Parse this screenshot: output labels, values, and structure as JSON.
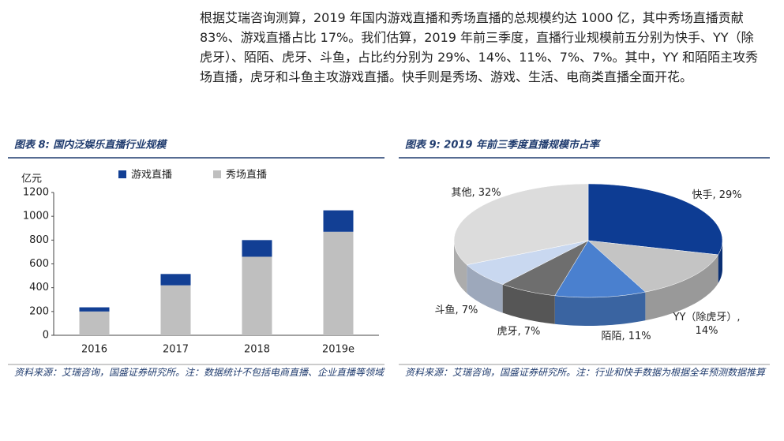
{
  "paragraph": "根据艾瑞咨询测算，2019 年国内游戏直播和秀场直播的总规模约达 1000 亿，其中秀场直播贡献 83%、游戏直播占比 17%。我们估算，2019 年前三季度，直播行业规模前五分别为快手、YY（除虎牙）、陌陌、虎牙、斗鱼，占比约分别为 29%、14%、11%、7%、7%。其中，YY 和陌陌主攻秀场直播，虎牙和斗鱼主攻游戏直播。快手则是秀场、游戏、生活、电商类直播全面开花。",
  "chart_data": [
    {
      "type": "stacked-bar",
      "title": "图表 8:  国内泛娱乐直播行业规模",
      "y_label": "亿元",
      "categories": [
        "2016",
        "2017",
        "2018",
        "2019e"
      ],
      "series": [
        {
          "name": "游戏直播",
          "color": "#123f94",
          "values": [
            35,
            95,
            140,
            180
          ]
        },
        {
          "name": "秀场直播",
          "color": "#bfbfbf",
          "values": [
            200,
            420,
            660,
            870
          ]
        }
      ],
      "ylim": [
        0,
        1200
      ],
      "yticks": [
        0,
        200,
        400,
        600,
        800,
        1000,
        1200
      ],
      "source": "资料来源：艾瑞咨询，国盛证券研究所。注：数据统计不包括电商直播、企业直播等领域"
    },
    {
      "type": "pie",
      "title": "图表 9:  2019 年前三季度直播规模市占率",
      "values": [
        29,
        14,
        11,
        7,
        7,
        32
      ],
      "value_labels": [
        "快手, 29%",
        "YY（除虎牙）,\n14%",
        "陌陌, 11%",
        "虎牙, 7%",
        "斗鱼, 7%",
        "其他, 32%"
      ],
      "colors": [
        "#0d3c93",
        "#c4c4c4",
        "#4a80cf",
        "#6e6e6e",
        "#c9d8f0",
        "#dcdcdc"
      ],
      "source": "资料来源：艾瑞咨询，国盛证券研究所。注：行业和快手数据为根据全年预测数据推算"
    }
  ]
}
